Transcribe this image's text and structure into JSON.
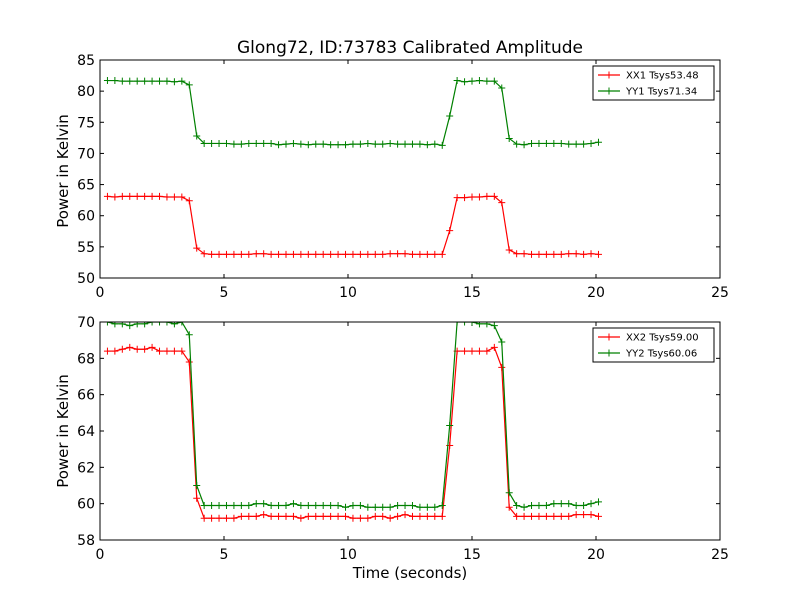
{
  "title": "Glong72, ID:73783 Calibrated Amplitude",
  "chart_data": [
    {
      "type": "line",
      "ylabel": "Power in Kelvin",
      "xlabel": "",
      "xlim": [
        0,
        25
      ],
      "ylim": [
        50,
        85
      ],
      "xticks": [
        "0",
        "5",
        "10",
        "15",
        "20",
        "25"
      ],
      "yticks": [
        "50",
        "55",
        "60",
        "65",
        "70",
        "75",
        "80",
        "85"
      ],
      "legend_position": "top-right",
      "marker": "+",
      "x": [
        0.3,
        0.6,
        0.9,
        1.2,
        1.5,
        1.8,
        2.1,
        2.4,
        2.7,
        3.0,
        3.3,
        3.6,
        3.9,
        4.2,
        4.5,
        4.8,
        5.1,
        5.4,
        5.7,
        6.0,
        6.3,
        6.6,
        6.9,
        7.2,
        7.5,
        7.8,
        8.1,
        8.4,
        8.7,
        9.0,
        9.3,
        9.6,
        9.9,
        10.2,
        10.5,
        10.8,
        11.1,
        11.4,
        11.7,
        12.0,
        12.3,
        12.6,
        12.9,
        13.2,
        13.5,
        13.8,
        14.1,
        14.4,
        14.7,
        15.0,
        15.3,
        15.6,
        15.9,
        16.2,
        16.5,
        16.8,
        17.1,
        17.4,
        17.7,
        18.0,
        18.3,
        18.6,
        18.9,
        19.2,
        19.5,
        19.8,
        20.1
      ],
      "series": [
        {
          "name": "XX1 Tsys53.48",
          "color": "#ff0000",
          "values": [
            63.1,
            63.0,
            63.1,
            63.1,
            63.1,
            63.1,
            63.1,
            63.1,
            63.0,
            63.0,
            63.0,
            62.4,
            54.8,
            53.9,
            53.8,
            53.8,
            53.8,
            53.8,
            53.8,
            53.8,
            53.9,
            53.9,
            53.8,
            53.8,
            53.8,
            53.8,
            53.8,
            53.8,
            53.8,
            53.8,
            53.8,
            53.8,
            53.8,
            53.8,
            53.8,
            53.8,
            53.8,
            53.8,
            53.9,
            53.9,
            53.9,
            53.8,
            53.8,
            53.8,
            53.8,
            53.8,
            57.6,
            62.9,
            62.9,
            63.0,
            63.0,
            63.1,
            63.1,
            62.1,
            54.5,
            53.9,
            53.9,
            53.8,
            53.8,
            53.8,
            53.8,
            53.8,
            53.9,
            53.9,
            53.8,
            53.9,
            53.8
          ]
        },
        {
          "name": "YY1 Tsys71.34",
          "color": "#008000",
          "values": [
            81.7,
            81.7,
            81.6,
            81.6,
            81.6,
            81.6,
            81.6,
            81.6,
            81.6,
            81.5,
            81.6,
            81.0,
            72.8,
            71.6,
            71.6,
            71.6,
            71.6,
            71.5,
            71.5,
            71.6,
            71.6,
            71.6,
            71.6,
            71.4,
            71.5,
            71.6,
            71.5,
            71.4,
            71.5,
            71.5,
            71.4,
            71.4,
            71.4,
            71.5,
            71.5,
            71.6,
            71.5,
            71.5,
            71.6,
            71.5,
            71.5,
            71.5,
            71.5,
            71.4,
            71.5,
            71.3,
            76.0,
            81.7,
            81.5,
            81.6,
            81.7,
            81.6,
            81.6,
            80.5,
            72.4,
            71.5,
            71.4,
            71.6,
            71.6,
            71.6,
            71.6,
            71.6,
            71.5,
            71.5,
            71.5,
            71.6,
            71.8
          ]
        }
      ]
    },
    {
      "type": "line",
      "ylabel": "Power in Kelvin",
      "xlabel": "Time (seconds)",
      "xlim": [
        0,
        25
      ],
      "ylim": [
        58,
        70
      ],
      "xticks": [
        "0",
        "5",
        "10",
        "15",
        "20",
        "25"
      ],
      "yticks": [
        "58",
        "60",
        "62",
        "64",
        "66",
        "68",
        "70"
      ],
      "legend_position": "top-right",
      "marker": "+",
      "x": [
        0.3,
        0.6,
        0.9,
        1.2,
        1.5,
        1.8,
        2.1,
        2.4,
        2.7,
        3.0,
        3.3,
        3.6,
        3.9,
        4.2,
        4.5,
        4.8,
        5.1,
        5.4,
        5.7,
        6.0,
        6.3,
        6.6,
        6.9,
        7.2,
        7.5,
        7.8,
        8.1,
        8.4,
        8.7,
        9.0,
        9.3,
        9.6,
        9.9,
        10.2,
        10.5,
        10.8,
        11.1,
        11.4,
        11.7,
        12.0,
        12.3,
        12.6,
        12.9,
        13.2,
        13.5,
        13.8,
        14.1,
        14.4,
        14.7,
        15.0,
        15.3,
        15.6,
        15.9,
        16.2,
        16.5,
        16.8,
        17.1,
        17.4,
        17.7,
        18.0,
        18.3,
        18.6,
        18.9,
        19.2,
        19.5,
        19.8,
        20.1
      ],
      "series": [
        {
          "name": "XX2 Tsys59.00",
          "color": "#ff0000",
          "values": [
            68.4,
            68.4,
            68.5,
            68.6,
            68.5,
            68.5,
            68.6,
            68.4,
            68.4,
            68.4,
            68.4,
            67.8,
            60.3,
            59.2,
            59.2,
            59.2,
            59.2,
            59.2,
            59.3,
            59.3,
            59.3,
            59.4,
            59.3,
            59.3,
            59.3,
            59.3,
            59.2,
            59.3,
            59.3,
            59.3,
            59.3,
            59.3,
            59.3,
            59.2,
            59.2,
            59.2,
            59.3,
            59.3,
            59.2,
            59.3,
            59.4,
            59.3,
            59.3,
            59.3,
            59.3,
            59.3,
            63.2,
            68.4,
            68.4,
            68.4,
            68.4,
            68.4,
            68.6,
            67.5,
            59.8,
            59.3,
            59.3,
            59.3,
            59.3,
            59.3,
            59.3,
            59.3,
            59.3,
            59.4,
            59.4,
            59.4,
            59.3
          ]
        },
        {
          "name": "YY2 Tsys60.06",
          "color": "#008000",
          "values": [
            70.0,
            69.9,
            69.9,
            69.8,
            69.9,
            69.9,
            70.0,
            70.0,
            70.0,
            69.9,
            70.0,
            69.3,
            61.0,
            59.9,
            59.9,
            59.9,
            59.9,
            59.9,
            59.9,
            59.9,
            60.0,
            60.0,
            59.9,
            59.9,
            59.9,
            60.0,
            59.9,
            59.9,
            59.9,
            59.9,
            59.9,
            59.9,
            59.8,
            59.9,
            59.9,
            59.8,
            59.8,
            59.8,
            59.8,
            59.9,
            59.9,
            59.9,
            59.8,
            59.8,
            59.8,
            59.9,
            64.3,
            70.0,
            70.0,
            70.0,
            69.9,
            69.9,
            69.8,
            68.9,
            60.6,
            59.9,
            59.8,
            59.9,
            59.9,
            59.9,
            60.0,
            60.0,
            60.0,
            59.9,
            59.9,
            60.0,
            60.1
          ]
        }
      ]
    }
  ]
}
